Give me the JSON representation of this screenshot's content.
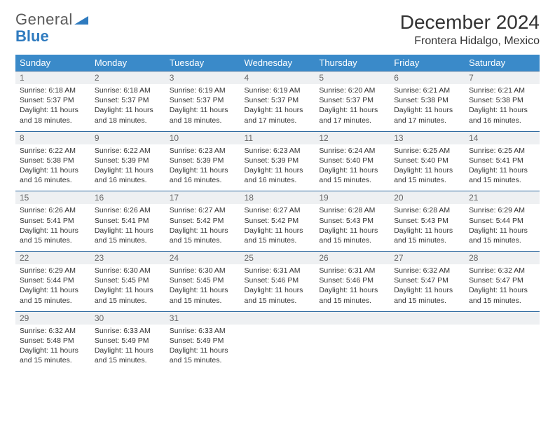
{
  "brand": {
    "name_a": "General",
    "name_b": "Blue"
  },
  "header": {
    "month": "December 2024",
    "location": "Frontera Hidalgo, Mexico"
  },
  "theme": {
    "header_bg": "#3a8ac9",
    "header_fg": "#ffffff",
    "daynum_bg": "#eef0f2",
    "row_divider": "#2f6aa0",
    "text_color": "#333333",
    "brand_gray": "#5a5a5a",
    "brand_blue": "#2f7bbf",
    "background": "#ffffff",
    "font_body_pt": 10.5,
    "font_header_pt": 13,
    "font_title_pt": 28,
    "font_location_pt": 16
  },
  "weekdays": [
    "Sunday",
    "Monday",
    "Tuesday",
    "Wednesday",
    "Thursday",
    "Friday",
    "Saturday"
  ],
  "weeks": [
    [
      {
        "n": "1",
        "sunrise": "6:18 AM",
        "sunset": "5:37 PM",
        "day": "11 hours and 18 minutes."
      },
      {
        "n": "2",
        "sunrise": "6:18 AM",
        "sunset": "5:37 PM",
        "day": "11 hours and 18 minutes."
      },
      {
        "n": "3",
        "sunrise": "6:19 AM",
        "sunset": "5:37 PM",
        "day": "11 hours and 18 minutes."
      },
      {
        "n": "4",
        "sunrise": "6:19 AM",
        "sunset": "5:37 PM",
        "day": "11 hours and 17 minutes."
      },
      {
        "n": "5",
        "sunrise": "6:20 AM",
        "sunset": "5:37 PM",
        "day": "11 hours and 17 minutes."
      },
      {
        "n": "6",
        "sunrise": "6:21 AM",
        "sunset": "5:38 PM",
        "day": "11 hours and 17 minutes."
      },
      {
        "n": "7",
        "sunrise": "6:21 AM",
        "sunset": "5:38 PM",
        "day": "11 hours and 16 minutes."
      }
    ],
    [
      {
        "n": "8",
        "sunrise": "6:22 AM",
        "sunset": "5:38 PM",
        "day": "11 hours and 16 minutes."
      },
      {
        "n": "9",
        "sunrise": "6:22 AM",
        "sunset": "5:39 PM",
        "day": "11 hours and 16 minutes."
      },
      {
        "n": "10",
        "sunrise": "6:23 AM",
        "sunset": "5:39 PM",
        "day": "11 hours and 16 minutes."
      },
      {
        "n": "11",
        "sunrise": "6:23 AM",
        "sunset": "5:39 PM",
        "day": "11 hours and 16 minutes."
      },
      {
        "n": "12",
        "sunrise": "6:24 AM",
        "sunset": "5:40 PM",
        "day": "11 hours and 15 minutes."
      },
      {
        "n": "13",
        "sunrise": "6:25 AM",
        "sunset": "5:40 PM",
        "day": "11 hours and 15 minutes."
      },
      {
        "n": "14",
        "sunrise": "6:25 AM",
        "sunset": "5:41 PM",
        "day": "11 hours and 15 minutes."
      }
    ],
    [
      {
        "n": "15",
        "sunrise": "6:26 AM",
        "sunset": "5:41 PM",
        "day": "11 hours and 15 minutes."
      },
      {
        "n": "16",
        "sunrise": "6:26 AM",
        "sunset": "5:41 PM",
        "day": "11 hours and 15 minutes."
      },
      {
        "n": "17",
        "sunrise": "6:27 AM",
        "sunset": "5:42 PM",
        "day": "11 hours and 15 minutes."
      },
      {
        "n": "18",
        "sunrise": "6:27 AM",
        "sunset": "5:42 PM",
        "day": "11 hours and 15 minutes."
      },
      {
        "n": "19",
        "sunrise": "6:28 AM",
        "sunset": "5:43 PM",
        "day": "11 hours and 15 minutes."
      },
      {
        "n": "20",
        "sunrise": "6:28 AM",
        "sunset": "5:43 PM",
        "day": "11 hours and 15 minutes."
      },
      {
        "n": "21",
        "sunrise": "6:29 AM",
        "sunset": "5:44 PM",
        "day": "11 hours and 15 minutes."
      }
    ],
    [
      {
        "n": "22",
        "sunrise": "6:29 AM",
        "sunset": "5:44 PM",
        "day": "11 hours and 15 minutes."
      },
      {
        "n": "23",
        "sunrise": "6:30 AM",
        "sunset": "5:45 PM",
        "day": "11 hours and 15 minutes."
      },
      {
        "n": "24",
        "sunrise": "6:30 AM",
        "sunset": "5:45 PM",
        "day": "11 hours and 15 minutes."
      },
      {
        "n": "25",
        "sunrise": "6:31 AM",
        "sunset": "5:46 PM",
        "day": "11 hours and 15 minutes."
      },
      {
        "n": "26",
        "sunrise": "6:31 AM",
        "sunset": "5:46 PM",
        "day": "11 hours and 15 minutes."
      },
      {
        "n": "27",
        "sunrise": "6:32 AM",
        "sunset": "5:47 PM",
        "day": "11 hours and 15 minutes."
      },
      {
        "n": "28",
        "sunrise": "6:32 AM",
        "sunset": "5:47 PM",
        "day": "11 hours and 15 minutes."
      }
    ],
    [
      {
        "n": "29",
        "sunrise": "6:32 AM",
        "sunset": "5:48 PM",
        "day": "11 hours and 15 minutes."
      },
      {
        "n": "30",
        "sunrise": "6:33 AM",
        "sunset": "5:49 PM",
        "day": "11 hours and 15 minutes."
      },
      {
        "n": "31",
        "sunrise": "6:33 AM",
        "sunset": "5:49 PM",
        "day": "11 hours and 15 minutes."
      },
      null,
      null,
      null,
      null
    ]
  ],
  "labels": {
    "sunrise": "Sunrise:",
    "sunset": "Sunset:",
    "daylight": "Daylight:"
  }
}
